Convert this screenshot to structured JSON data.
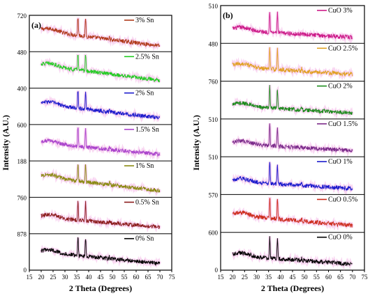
{
  "chart_data": [
    {
      "type": "line",
      "panel_label": "(a)",
      "xlabel": "2 Theta (Degrees)",
      "ylabel": "Intensity (A.U.)",
      "xlim": [
        15,
        75
      ],
      "xticks": [
        "15",
        "20",
        "25",
        "30",
        "35",
        "40",
        "45",
        "50",
        "55",
        "60",
        "65",
        "70",
        "75"
      ],
      "y_boundary_labels": [
        "720",
        "480",
        "400",
        "600",
        "188",
        "760",
        "878",
        "0"
      ],
      "grid": false,
      "legend_placement": "top-right of each stacked sub-panel",
      "peaks_2theta": [
        35.5,
        38.7
      ],
      "series": [
        {
          "name": "3% Sn",
          "color": "#b03a1a",
          "x": [
            20,
            70
          ],
          "baseline_start": 0.72,
          "baseline_end": 0.12
        },
        {
          "name": "2.5% Sn",
          "color": "#22cc22",
          "x": [
            20,
            70
          ],
          "baseline_start": 0.78,
          "baseline_end": 0.2
        },
        {
          "name": "2% Sn",
          "color": "#1a1acc",
          "x": [
            20,
            70
          ],
          "baseline_start": 0.7,
          "baseline_end": 0.15
        },
        {
          "name": "1.5% Sn",
          "color": "#aa44cc",
          "x": [
            20,
            70
          ],
          "baseline_start": 0.6,
          "baseline_end": 0.15
        },
        {
          "name": "1% Sn",
          "color": "#8a8a10",
          "x": [
            20,
            70
          ],
          "baseline_start": 0.7,
          "baseline_end": 0.15
        },
        {
          "name": "0.5% Sn",
          "color": "#8a1a1a",
          "x": [
            20,
            70
          ],
          "baseline_start": 0.55,
          "baseline_end": 0.15
        },
        {
          "name": "0% Sn",
          "color": "#000000",
          "x": [
            20,
            70
          ],
          "baseline_start": 0.6,
          "baseline_end": 0.15
        }
      ]
    },
    {
      "type": "line",
      "panel_label": "(b)",
      "xlabel": "2 Theta (Degrees)",
      "ylabel": "Intensity (A.U.)",
      "xlim": [
        15,
        75
      ],
      "xticks": [
        "15",
        "20",
        "25",
        "30",
        "35",
        "40",
        "45",
        "50",
        "55",
        "60",
        "65",
        "70",
        "75"
      ],
      "y_boundary_labels": [
        "510",
        "480",
        "760",
        "510",
        "510",
        "570",
        "600",
        "0"
      ],
      "grid": false,
      "legend_placement": "top-right of each stacked sub-panel",
      "peaks_2theta": [
        35.5,
        38.7
      ],
      "series": [
        {
          "name": "CuO 3%",
          "color": "#cc1a88",
          "x": [
            20,
            70
          ],
          "baseline_start": 0.4,
          "baseline_end": 0.12
        },
        {
          "name": "CuO 2.5%",
          "color": "#e0a020",
          "x": [
            20,
            70
          ],
          "baseline_start": 0.45,
          "baseline_end": 0.15
        },
        {
          "name": "CuO 2%",
          "color": "#1a8a1a",
          "x": [
            20,
            70
          ],
          "baseline_start": 0.4,
          "baseline_end": 0.12
        },
        {
          "name": "CuO 1.5%",
          "color": "#7a2a8a",
          "x": [
            20,
            70
          ],
          "baseline_start": 0.4,
          "baseline_end": 0.12
        },
        {
          "name": "CuO 1%",
          "color": "#1a1acc",
          "x": [
            20,
            70
          ],
          "baseline_start": 0.4,
          "baseline_end": 0.12
        },
        {
          "name": "CuO 0.5%",
          "color": "#cc2a1a",
          "x": [
            20,
            70
          ],
          "baseline_start": 0.55,
          "baseline_end": 0.15
        },
        {
          "name": "CuO 0%",
          "color": "#000000",
          "x": [
            20,
            70
          ],
          "baseline_start": 0.45,
          "baseline_end": 0.12
        }
      ]
    }
  ]
}
